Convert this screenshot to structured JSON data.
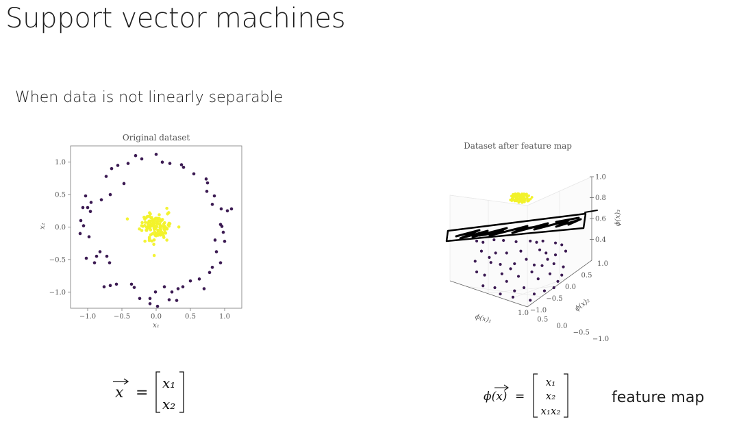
{
  "slide": {
    "title": "Support vector machines",
    "subtitle": "When data is not linearly separable",
    "feature_map_label": "feature map"
  },
  "colors": {
    "outer_class": "#3b1a52",
    "inner_class": "#f2f22a",
    "plane_ink": "#000000"
  },
  "formulas": {
    "left": {
      "lhs": "x",
      "eq": "=",
      "r1": "x₁",
      "r2": "x₂"
    },
    "right": {
      "lhs": "ϕ(x)",
      "eq": "=",
      "r1": "x₁",
      "r2": "x₂",
      "r3": "x₁x₂"
    }
  },
  "chart_data": [
    {
      "type": "scatter",
      "title": "Original dataset",
      "xlabel": "x₁",
      "ylabel": "x₂",
      "xlim": [
        -1.25,
        1.25
      ],
      "ylim": [
        -1.25,
        1.25
      ],
      "xticks": [
        "−1.0",
        "−0.5",
        "0.0",
        "0.5",
        "1.0"
      ],
      "xtick_values": [
        -1.0,
        -0.5,
        0.0,
        0.5,
        1.0
      ],
      "yticks": [
        "1.0",
        "0.5",
        "0.0",
        "−0.5",
        "−1.0"
      ],
      "ytick_values": [
        1.0,
        0.5,
        0.0,
        -0.5,
        -1.0
      ],
      "grid": false,
      "series": [
        {
          "points": [
            [
              0.0,
              1.12
            ],
            [
              -0.3,
              1.1
            ],
            [
              0.09,
              1.0
            ],
            [
              -0.21,
              1.05
            ],
            [
              0.2,
              0.98
            ],
            [
              -0.56,
              0.95
            ],
            [
              -0.41,
              0.98
            ],
            [
              0.37,
              0.96
            ],
            [
              0.4,
              0.92
            ],
            [
              -0.65,
              0.9
            ],
            [
              0.55,
              0.82
            ],
            [
              -0.73,
              0.78
            ],
            [
              0.73,
              0.74
            ],
            [
              -0.47,
              0.67
            ],
            [
              0.75,
              0.68
            ],
            [
              -0.67,
              0.5
            ],
            [
              0.74,
              0.55
            ],
            [
              -1.03,
              0.48
            ],
            [
              0.85,
              0.48
            ],
            [
              -0.8,
              0.42
            ],
            [
              -0.95,
              0.38
            ],
            [
              0.82,
              0.35
            ],
            [
              -1.0,
              0.3
            ],
            [
              -1.07,
              0.3
            ],
            [
              1.1,
              0.28
            ],
            [
              -0.96,
              0.24
            ],
            [
              0.95,
              0.28
            ],
            [
              1.04,
              0.25
            ],
            [
              -1.1,
              0.1
            ],
            [
              -1.06,
              0.02
            ],
            [
              0.94,
              0.04
            ],
            [
              0.96,
              0.01
            ],
            [
              -1.11,
              -0.1
            ],
            [
              0.98,
              -0.08
            ],
            [
              -0.98,
              -0.15
            ],
            [
              0.86,
              -0.2
            ],
            [
              1.0,
              -0.22
            ],
            [
              0.88,
              -0.38
            ],
            [
              -0.82,
              -0.38
            ],
            [
              -0.87,
              -0.45
            ],
            [
              -1.02,
              -0.48
            ],
            [
              -0.9,
              -0.55
            ],
            [
              -0.72,
              -0.45
            ],
            [
              0.94,
              -0.55
            ],
            [
              0.82,
              -0.62
            ],
            [
              -0.68,
              -0.55
            ],
            [
              0.78,
              -0.7
            ],
            [
              0.63,
              -0.8
            ],
            [
              0.5,
              -0.83
            ],
            [
              0.39,
              -0.92
            ],
            [
              -0.76,
              -0.92
            ],
            [
              -0.67,
              -0.9
            ],
            [
              -0.58,
              -0.88
            ],
            [
              0.7,
              -0.95
            ],
            [
              -0.36,
              -0.88
            ],
            [
              0.12,
              -0.92
            ],
            [
              0.32,
              -0.95
            ],
            [
              -0.32,
              -0.93
            ],
            [
              -0.01,
              -1.0
            ],
            [
              0.23,
              -1.0
            ],
            [
              -0.09,
              -1.1
            ],
            [
              -0.24,
              -1.1
            ],
            [
              0.19,
              -1.12
            ],
            [
              0.3,
              -1.13
            ],
            [
              -0.09,
              -1.18
            ],
            [
              0.02,
              -1.22
            ]
          ]
        },
        {
          "cluster": {
            "center": [
              0.0,
              0.0
            ],
            "spread": 0.1,
            "count": 130
          }
        }
      ]
    },
    {
      "type": "scatter",
      "title": "Dataset after feature map",
      "xlabel": "ϕ(x)₁",
      "ylabel": "ϕ(x)₂",
      "zlabel": "ϕ(x)₃",
      "xticks": [
        "−1.0",
        "−0.5",
        "0.0",
        "0.5",
        "1.0"
      ],
      "xtick_values": [
        -1.0,
        -0.5,
        0.0,
        0.5,
        1.0
      ],
      "yticks": [
        "−1.0",
        "−0.5",
        "0.0",
        "0.5",
        "1.0"
      ],
      "ytick_values": [
        -1.0,
        -0.5,
        0.0,
        0.5,
        1.0
      ],
      "zticks": [
        "0.4",
        "0.6",
        "0.8",
        "1.0"
      ],
      "ztick_values": [
        0.4,
        0.6,
        0.8,
        1.0
      ],
      "annotation": "hand-drawn separating plane",
      "series": [
        {
          "points": [
            [
              -0.18,
              -0.74
            ],
            [
              0.04,
              -0.76
            ],
            [
              0.16,
              -0.75
            ],
            [
              0.32,
              -0.73
            ],
            [
              0.5,
              -0.74
            ],
            [
              0.66,
              -0.74
            ],
            [
              0.82,
              -0.71
            ],
            [
              -0.1,
              -0.72
            ],
            [
              0.58,
              -0.72
            ],
            [
              0.9,
              -0.68
            ],
            [
              -0.12,
              -0.58
            ],
            [
              0.06,
              -0.55
            ],
            [
              0.7,
              -0.55
            ],
            [
              0.82,
              -0.52
            ],
            [
              0.95,
              -0.58
            ],
            [
              -0.2,
              -0.42
            ],
            [
              0.0,
              -0.4
            ],
            [
              0.12,
              -0.37
            ],
            [
              0.3,
              -0.38
            ],
            [
              0.45,
              -0.45
            ],
            [
              0.55,
              -0.36
            ],
            [
              0.65,
              -0.35
            ],
            [
              0.8,
              -0.38
            ],
            [
              0.92,
              -0.33
            ],
            [
              -0.18,
              -0.25
            ],
            [
              -0.08,
              -0.2
            ],
            [
              0.14,
              -0.22
            ],
            [
              0.2,
              -0.1
            ],
            [
              0.35,
              -0.18
            ],
            [
              0.52,
              -0.25
            ],
            [
              0.6,
              -0.14
            ],
            [
              0.75,
              -0.22
            ],
            [
              0.85,
              -0.1
            ],
            [
              -0.1,
              -0.03
            ],
            [
              0.05,
              0.0
            ],
            [
              0.3,
              0.05
            ],
            [
              0.42,
              0.0
            ],
            [
              0.68,
              0.05
            ],
            [
              0.8,
              0.0
            ],
            [
              0.28,
              0.15
            ],
            [
              0.5,
              0.2
            ],
            [
              0.55,
              0.1
            ],
            [
              0.2,
              -0.55
            ],
            [
              0.38,
              -0.58
            ],
            [
              0.12,
              0.1
            ],
            [
              0.9,
              -0.2
            ],
            [
              -0.02,
              -0.48
            ],
            [
              0.62,
              -0.6
            ],
            [
              0.25,
              -0.3
            ],
            [
              0.72,
              -0.45
            ]
          ]
        },
        {
          "cluster": {
            "center": [
              0.5,
              0.83
            ],
            "spread": 0.04,
            "count": 90
          }
        }
      ]
    }
  ]
}
